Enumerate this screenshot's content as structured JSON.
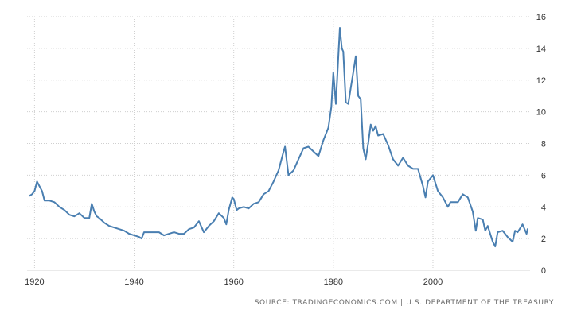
{
  "chart_data": {
    "type": "line",
    "title": "",
    "xlabel": "",
    "ylabel": "",
    "xlim": [
      1918.5,
      2019.5
    ],
    "ylim": [
      0,
      16
    ],
    "x_ticks": [
      1920,
      1940,
      1960,
      1980,
      2000
    ],
    "y_ticks": [
      0,
      2,
      4,
      6,
      8,
      10,
      12,
      14,
      16
    ],
    "y_axis_position": "right",
    "grid": true,
    "legend": "none",
    "colors": {
      "line": "#4a7fb1",
      "grid": "#cfcfcf",
      "tick_label": "#333333"
    },
    "series": [
      {
        "x": [
          1919,
          1919.5,
          1920,
          1920.5,
          1921,
          1921.5,
          1922,
          1923,
          1924,
          1925,
          1926,
          1927,
          1928,
          1929,
          1930,
          1931,
          1931.5,
          1932,
          1932.5,
          1933,
          1934,
          1935,
          1936,
          1937,
          1938,
          1939,
          1940,
          1941,
          1941.5,
          1942,
          1943,
          1944,
          1945,
          1946,
          1947,
          1948,
          1949,
          1950,
          1951,
          1952,
          1953,
          1954,
          1955,
          1956,
          1957,
          1958,
          1958.5,
          1959,
          1959.7,
          1960,
          1960.6,
          1961,
          1962,
          1963,
          1964,
          1965,
          1966,
          1967,
          1968,
          1969,
          1970,
          1970.3,
          1971,
          1972,
          1973,
          1974,
          1975,
          1976,
          1977,
          1978,
          1979,
          1979.6,
          1980,
          1980.5,
          1981,
          1981.3,
          1981.7,
          1982,
          1982.5,
          1983,
          1983.5,
          1984,
          1984.5,
          1985,
          1985.5,
          1986,
          1986.5,
          1987,
          1987.5,
          1988,
          1988.5,
          1989,
          1990,
          1991,
          1992,
          1993,
          1994,
          1995,
          1996,
          1997,
          1998,
          1998.5,
          1999,
          2000,
          2001,
          2002,
          2003,
          2003.5,
          2004,
          2005,
          2006,
          2007,
          2008,
          2008.6,
          2009,
          2010,
          2010.5,
          2011,
          2012,
          2012.5,
          2013,
          2014,
          2015,
          2016,
          2016.5,
          2017,
          2018,
          2018.8,
          2019
        ],
        "values": [
          4.7,
          4.8,
          5.0,
          5.6,
          5.3,
          5.0,
          4.4,
          4.4,
          4.3,
          4.0,
          3.8,
          3.5,
          3.4,
          3.6,
          3.3,
          3.3,
          4.2,
          3.7,
          3.4,
          3.3,
          3.0,
          2.8,
          2.7,
          2.6,
          2.5,
          2.3,
          2.2,
          2.1,
          2.0,
          2.4,
          2.4,
          2.4,
          2.4,
          2.2,
          2.3,
          2.4,
          2.3,
          2.3,
          2.6,
          2.7,
          3.1,
          2.4,
          2.8,
          3.1,
          3.6,
          3.3,
          2.9,
          3.8,
          4.6,
          4.5,
          3.8,
          3.9,
          4.0,
          3.9,
          4.2,
          4.3,
          4.8,
          5.0,
          5.6,
          6.3,
          7.5,
          7.8,
          6.0,
          6.3,
          7.0,
          7.7,
          7.8,
          7.5,
          7.2,
          8.2,
          9.0,
          10.3,
          12.5,
          10.5,
          13.5,
          15.3,
          14.0,
          13.8,
          10.6,
          10.5,
          11.5,
          12.5,
          13.5,
          11.0,
          10.8,
          7.7,
          7.0,
          8.0,
          9.2,
          8.8,
          9.1,
          8.5,
          8.6,
          7.9,
          7.0,
          6.6,
          7.1,
          6.6,
          6.4,
          6.4,
          5.3,
          4.6,
          5.6,
          6.0,
          5.0,
          4.6,
          4.0,
          4.3,
          4.3,
          4.3,
          4.8,
          4.6,
          3.7,
          2.5,
          3.3,
          3.2,
          2.5,
          2.8,
          1.8,
          1.5,
          2.4,
          2.5,
          2.1,
          1.8,
          2.5,
          2.4,
          2.9,
          2.3,
          2.6
        ]
      }
    ]
  },
  "source": "SOURCE: TRADINGECONOMICS.COM | U.S. DEPARTMENT OF THE TREASURY"
}
